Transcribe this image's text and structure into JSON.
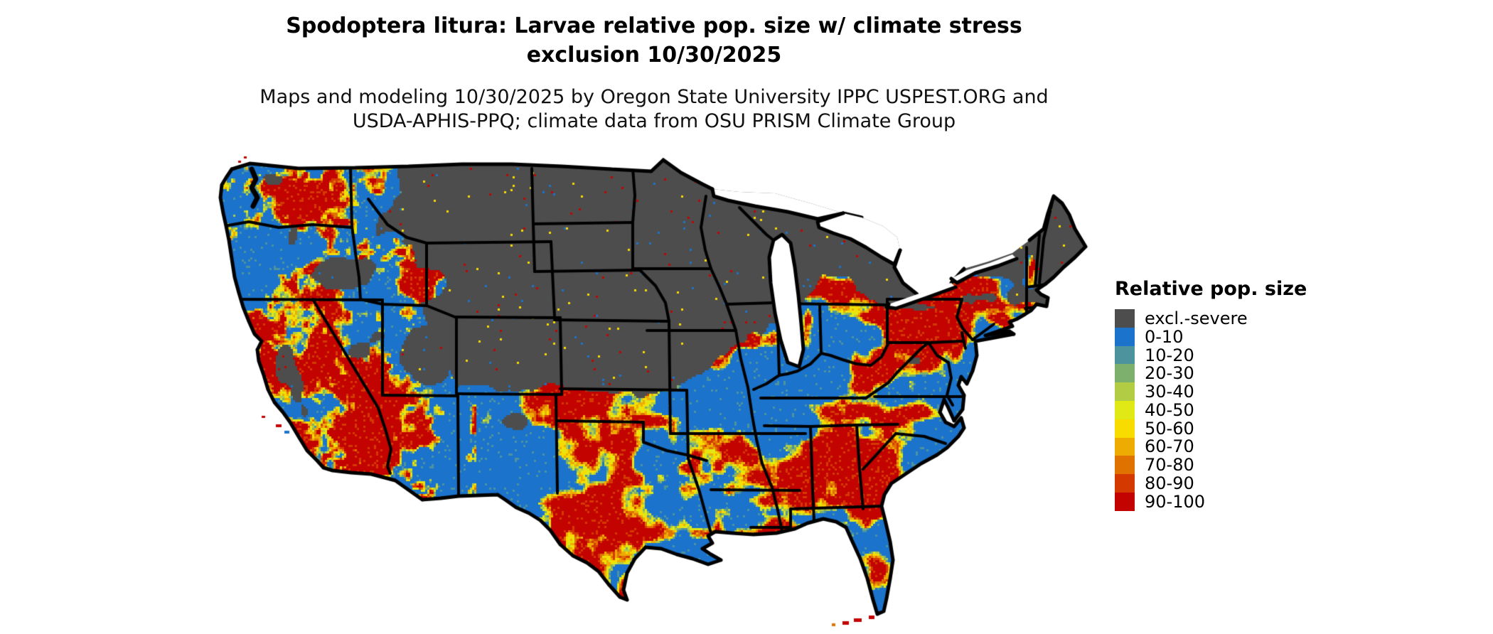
{
  "header": {
    "title_line1": "Spodoptera litura: Larvae relative pop. size w/ climate stress",
    "title_line2": "exclusion 10/30/2025",
    "subtitle_line1": "Maps and modeling 10/30/2025 by Oregon State University IPPC USPEST.ORG and",
    "subtitle_line2": "USDA-APHIS-PPQ; climate data from OSU PRISM Climate Group"
  },
  "legend": {
    "title": "Relative pop. size",
    "items": [
      {
        "label": "excl.-severe",
        "color": "#4D4D4D"
      },
      {
        "label": "0-10",
        "color": "#1B73CB"
      },
      {
        "label": "10-20",
        "color": "#4D939E"
      },
      {
        "label": "20-30",
        "color": "#7DB06C"
      },
      {
        "label": "30-40",
        "color": "#B2CC44"
      },
      {
        "label": "40-50",
        "color": "#E0E815"
      },
      {
        "label": "50-60",
        "color": "#F8DC00"
      },
      {
        "label": "60-70",
        "color": "#EEAB02"
      },
      {
        "label": "70-80",
        "color": "#E07200"
      },
      {
        "label": "80-90",
        "color": "#D43A00"
      },
      {
        "label": "90-100",
        "color": "#C20300"
      }
    ]
  },
  "map": {
    "colors": {
      "background": "#FFFFFF",
      "state_border": "#000000",
      "water": "#FFFFFF",
      "excluded": "#4D4D4D"
    }
  }
}
